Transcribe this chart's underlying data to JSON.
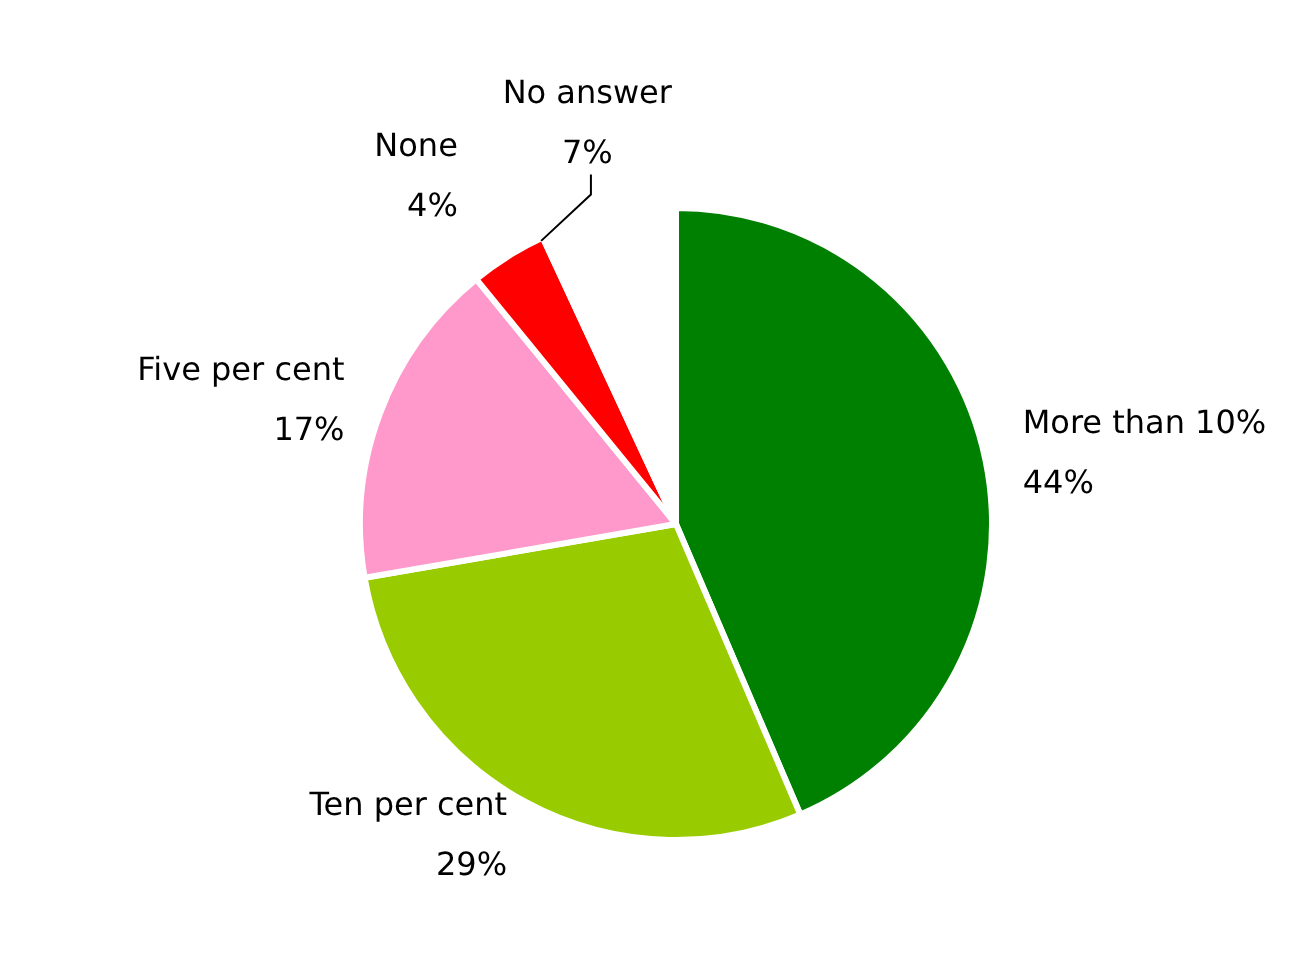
{
  "chart_data": {
    "type": "pie",
    "categories": [
      "More than 10%",
      "Ten per cent",
      "Five per cent",
      "None",
      "No answer"
    ],
    "values": [
      44,
      29,
      17,
      4,
      7
    ],
    "colors": [
      "#008000",
      "#99cc00",
      "#ff99cc",
      "#ff0000",
      "#ffffff"
    ],
    "value_labels": [
      "44%",
      "29%",
      "17%",
      "4%",
      "7%"
    ]
  }
}
